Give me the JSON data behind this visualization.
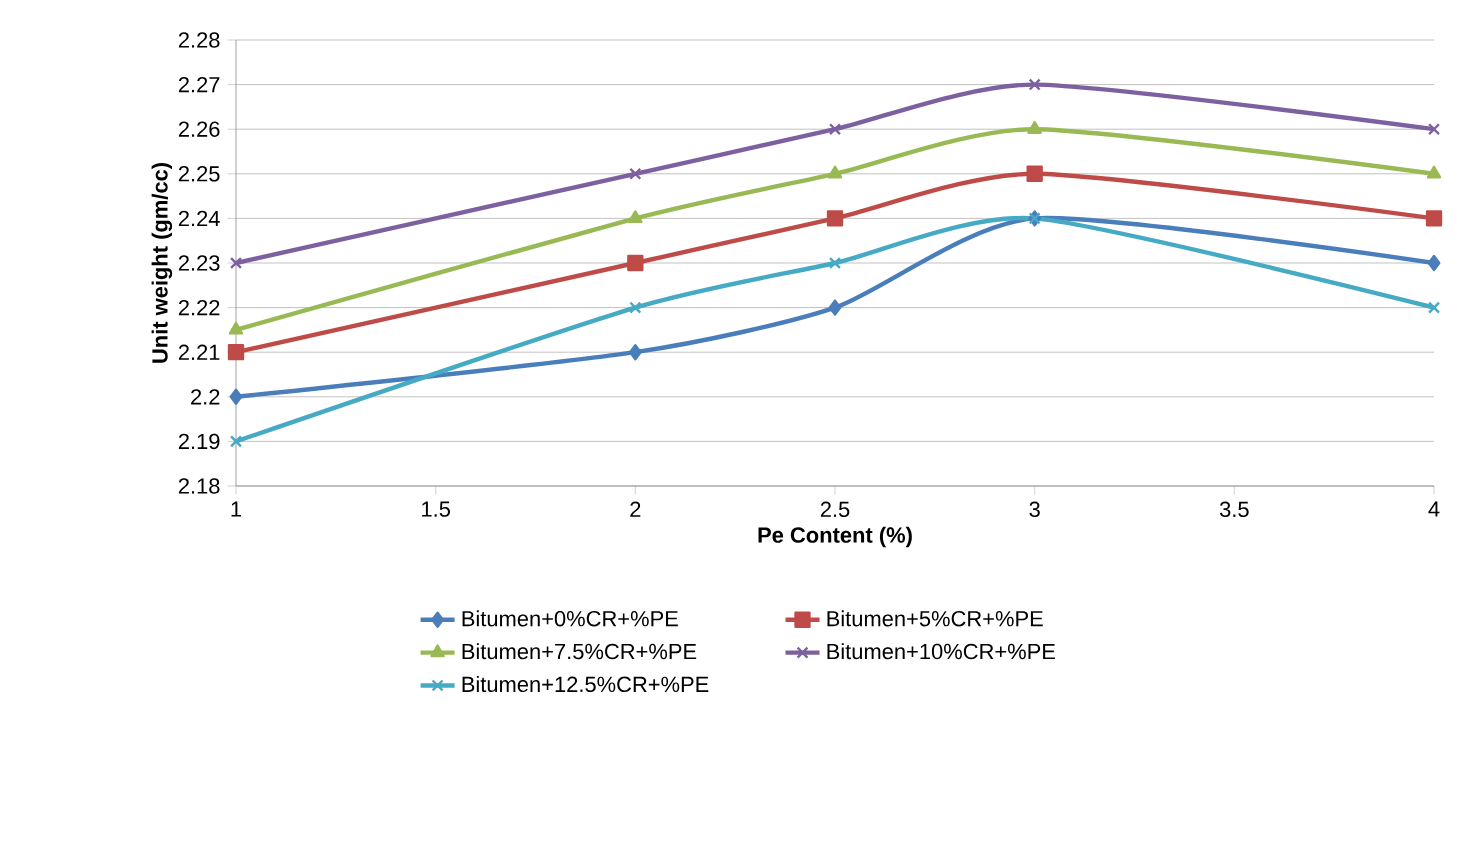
{
  "chart_data": {
    "type": "line",
    "xlabel": "Pe Content (%)",
    "ylabel": "Unit weight (gm/cc)",
    "x": [
      1,
      2,
      2.5,
      3,
      4
    ],
    "xlim": [
      1,
      4
    ],
    "xticks": [
      1,
      1.5,
      2,
      2.5,
      3,
      3.5,
      4
    ],
    "ylim": [
      2.18,
      2.28
    ],
    "yticks": [
      2.18,
      2.19,
      2.2,
      2.21,
      2.22,
      2.23,
      2.24,
      2.25,
      2.26,
      2.27,
      2.28
    ],
    "grid": "y",
    "legend": "bottom",
    "line_style": "solid",
    "series": [
      {
        "name": "Bitumen+0%CR+%PE",
        "color": "#4a7ebb",
        "marker": "diamond",
        "values": [
          2.2,
          2.21,
          2.22,
          2.24,
          2.23
        ]
      },
      {
        "name": "Bitumen+5%CR+%PE",
        "color": "#be4b48",
        "marker": "square",
        "values": [
          2.21,
          2.23,
          2.24,
          2.25,
          2.24
        ]
      },
      {
        "name": "Bitumen+7.5%CR+%PE",
        "color": "#98b954",
        "marker": "triangle",
        "values": [
          2.215,
          2.24,
          2.25,
          2.26,
          2.25
        ]
      },
      {
        "name": "Bitumen+10%CR+%PE",
        "color": "#7d60a0",
        "marker": "cross",
        "values": [
          2.23,
          2.25,
          2.26,
          2.27,
          2.26
        ]
      },
      {
        "name": "Bitumen+12.5%CR+%PE",
        "color": "#46aac5",
        "marker": "cross",
        "values": [
          2.19,
          2.22,
          2.23,
          2.24,
          2.22
        ]
      }
    ]
  }
}
